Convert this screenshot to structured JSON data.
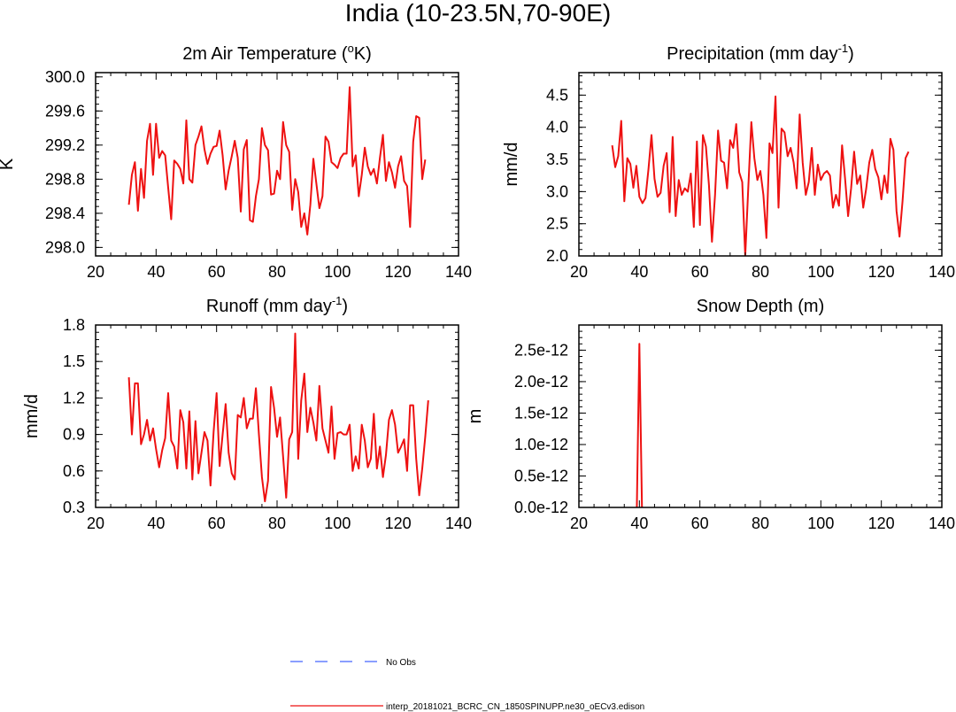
{
  "figure_title": "India (10-23.5N,70-90E)",
  "colors": {
    "model": "#ee1111",
    "obs": "#4466ff",
    "axis": "#000000"
  },
  "legend": {
    "obs_label": "No Obs",
    "model_label": "interp_20181021_BCRC_CN_1850SPINUPP.ne30_oECv3.edison"
  },
  "chart_data": [
    {
      "type": "line",
      "title_main": "2m Air Temperature (",
      "title_sup": "o",
      "title_end": "K)",
      "ylabel": "K",
      "xlim": [
        20,
        140
      ],
      "ylim": [
        297.9,
        300.05
      ],
      "xticks": [
        20,
        40,
        60,
        80,
        100,
        120,
        140
      ],
      "xticklabels": [
        "20",
        "40",
        "60",
        "80",
        "100",
        "120",
        "140"
      ],
      "yticks": [
        298.0,
        298.4,
        298.8,
        299.2,
        299.6,
        300.0
      ],
      "yticklabels": [
        "298.0",
        "298.4",
        "298.8",
        "299.2",
        "299.6",
        "300.0"
      ],
      "x_start": 31,
      "values": [
        298.5,
        298.85,
        299.0,
        298.43,
        298.92,
        298.58,
        299.25,
        299.45,
        298.85,
        299.45,
        299.05,
        299.13,
        299.08,
        298.7,
        298.33,
        299.02,
        298.98,
        298.92,
        298.75,
        299.49,
        298.8,
        298.76,
        299.2,
        299.3,
        299.42,
        299.15,
        298.98,
        299.1,
        299.18,
        299.19,
        299.37,
        299.08,
        298.68,
        298.9,
        299.07,
        299.25,
        299.05,
        298.42,
        299.15,
        299.26,
        298.32,
        298.3,
        298.6,
        298.8,
        299.4,
        299.2,
        299.14,
        298.62,
        298.63,
        298.9,
        298.8,
        299.47,
        299.2,
        299.12,
        298.44,
        298.8,
        298.65,
        298.24,
        298.4,
        298.15,
        298.5,
        299.04,
        298.75,
        298.46,
        298.6,
        299.3,
        299.24,
        299.0,
        298.97,
        298.93,
        299.05,
        299.1,
        299.1,
        299.88,
        298.95,
        299.08,
        298.6,
        298.85,
        299.17,
        298.95,
        298.85,
        298.92,
        298.75,
        299.05,
        299.32,
        298.78,
        299.0,
        298.88,
        298.7,
        298.95,
        299.07,
        298.78,
        298.72,
        298.24,
        299.24,
        299.54,
        299.52,
        298.8,
        299.03
      ],
      "render": "line"
    },
    {
      "type": "line",
      "title_main": "Precipitation (mm day",
      "title_sup": "-1",
      "title_end": ")",
      "ylabel": "mm/d",
      "xlim": [
        20,
        140
      ],
      "ylim": [
        2.0,
        4.85
      ],
      "xticks": [
        20,
        40,
        60,
        80,
        100,
        120,
        140
      ],
      "xticklabels": [
        "20",
        "40",
        "60",
        "80",
        "100",
        "120",
        "140"
      ],
      "yticks": [
        2.0,
        2.5,
        3.0,
        3.5,
        4.0,
        4.5
      ],
      "yticklabels": [
        "2.0",
        "2.5",
        "3.0",
        "3.5",
        "4.0",
        "4.5"
      ],
      "x_start": 31,
      "values": [
        3.72,
        3.38,
        3.55,
        4.1,
        2.85,
        3.52,
        3.43,
        3.06,
        3.4,
        2.92,
        2.82,
        2.9,
        3.35,
        3.88,
        3.2,
        2.92,
        2.98,
        3.4,
        3.6,
        2.68,
        3.85,
        2.62,
        3.18,
        2.95,
        3.05,
        3.0,
        3.28,
        2.45,
        3.78,
        2.48,
        3.88,
        3.7,
        3.1,
        2.22,
        2.95,
        3.95,
        3.48,
        3.45,
        3.05,
        3.8,
        3.68,
        4.05,
        3.3,
        3.15,
        2.0,
        3.05,
        4.08,
        3.52,
        3.18,
        3.32,
        2.95,
        2.28,
        3.75,
        3.6,
        4.48,
        2.75,
        3.98,
        3.92,
        3.55,
        3.68,
        3.45,
        3.05,
        4.2,
        3.45,
        2.95,
        3.15,
        3.68,
        2.95,
        3.42,
        3.18,
        3.28,
        3.32,
        3.25,
        2.75,
        2.95,
        2.78,
        3.72,
        3.2,
        2.62,
        3.05,
        3.62,
        3.12,
        3.25,
        2.75,
        3.05,
        3.45,
        3.65,
        3.35,
        3.22,
        2.88,
        3.25,
        2.98,
        3.82,
        3.65,
        2.7,
        2.3,
        2.85,
        3.52,
        3.62
      ],
      "render": "line"
    },
    {
      "type": "line",
      "title_main": "Runoff (mm day",
      "title_sup": "-1",
      "title_end": ")",
      "ylabel": "mm/d",
      "xlim": [
        20,
        140
      ],
      "ylim": [
        0.3,
        1.8
      ],
      "xticks": [
        20,
        40,
        60,
        80,
        100,
        120,
        140
      ],
      "xticklabels": [
        "20",
        "40",
        "60",
        "80",
        "100",
        "120",
        "140"
      ],
      "yticks": [
        0.3,
        0.6,
        0.9,
        1.2,
        1.5,
        1.8
      ],
      "yticklabels": [
        "0.3",
        "0.6",
        "0.9",
        "1.2",
        "1.5",
        "1.8"
      ],
      "x_start": 31,
      "values": [
        1.37,
        0.9,
        1.32,
        1.32,
        0.82,
        0.9,
        1.02,
        0.85,
        0.95,
        0.78,
        0.63,
        0.77,
        0.87,
        1.24,
        0.85,
        0.8,
        0.62,
        1.1,
        1.0,
        0.62,
        1.09,
        0.53,
        1.01,
        0.58,
        0.75,
        0.92,
        0.85,
        0.48,
        0.92,
        1.24,
        0.64,
        0.9,
        1.15,
        0.75,
        0.58,
        0.53,
        1.06,
        1.04,
        1.2,
        0.95,
        1.03,
        1.03,
        1.28,
        0.9,
        0.55,
        0.35,
        0.52,
        1.29,
        1.12,
        0.88,
        1.04,
        0.72,
        0.38,
        0.86,
        0.92,
        1.73,
        0.7,
        1.18,
        1.4,
        0.92,
        1.12,
        1.0,
        0.85,
        1.3,
        0.95,
        0.85,
        0.75,
        1.13,
        0.7,
        0.91,
        0.92,
        0.9,
        0.9,
        0.98,
        0.6,
        0.72,
        0.62,
        0.98,
        0.85,
        0.63,
        0.7,
        1.07,
        0.62,
        0.8,
        0.55,
        0.73,
        1.02,
        1.1,
        0.98,
        0.75,
        0.8,
        0.86,
        0.6,
        1.14,
        1.14,
        0.7,
        0.4,
        0.62,
        0.88,
        1.18
      ],
      "render": "line"
    },
    {
      "type": "line",
      "title_main": "Snow Depth (m)",
      "title_sup": "",
      "title_end": "",
      "ylabel": "m",
      "xlim": [
        20,
        140
      ],
      "ylim": [
        0.0,
        2.9
      ],
      "xticks": [
        20,
        40,
        60,
        80,
        100,
        120,
        140
      ],
      "xticklabels": [
        "20",
        "40",
        "60",
        "80",
        "100",
        "120",
        "140"
      ],
      "yticks": [
        0.0,
        0.5,
        1.0,
        1.5,
        2.0,
        2.5
      ],
      "yticklabels": [
        "0.0e-12",
        "0.5e-12",
        "1.0e-12",
        "1.5e-12",
        "2.0e-12",
        "2.5e-12"
      ],
      "y_scale_note": "values in units of 1e-12 m",
      "x_start": 39,
      "values": [
        -0.5,
        2.6,
        -0.5
      ],
      "render": "spike"
    }
  ]
}
